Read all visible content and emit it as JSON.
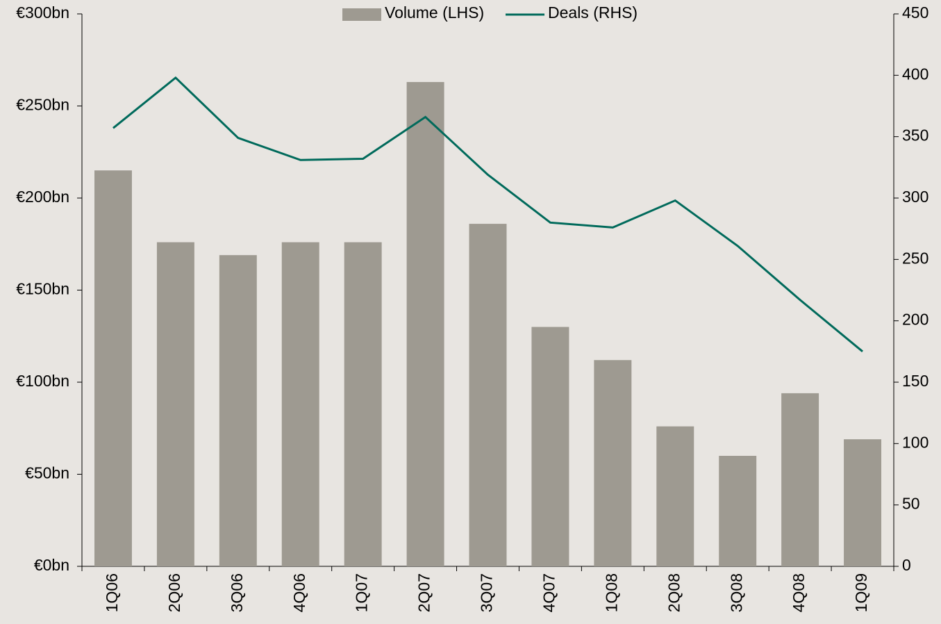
{
  "chart_data": {
    "type": "bar_line",
    "categories": [
      "1Q06",
      "2Q06",
      "3Q06",
      "4Q06",
      "1Q07",
      "2Q07",
      "3Q07",
      "4Q07",
      "1Q08",
      "2Q08",
      "3Q08",
      "4Q08",
      "1Q09"
    ],
    "series": [
      {
        "name": "Volume (LHS)",
        "type": "bar",
        "axis": "y",
        "color": "#9e9a91",
        "values": [
          215,
          176,
          169,
          176,
          176,
          263,
          186,
          130,
          112,
          76,
          60,
          94,
          69
        ]
      },
      {
        "name": "Deals (RHS)",
        "type": "line",
        "axis": "y2",
        "color": "#006a5b",
        "values": [
          357,
          398,
          349,
          331,
          332,
          366,
          319,
          280,
          276,
          298,
          261,
          217,
          175
        ]
      }
    ],
    "ylim": [
      0,
      300
    ],
    "yticks": [
      {
        "value": 0,
        "label": "€0bn"
      },
      {
        "value": 50,
        "label": "€50bn"
      },
      {
        "value": 100,
        "label": "€100bn"
      },
      {
        "value": 150,
        "label": "€150bn"
      },
      {
        "value": 200,
        "label": "€200bn"
      },
      {
        "value": 250,
        "label": "€250bn"
      },
      {
        "value": 300,
        "label": "€300bn"
      }
    ],
    "y2lim": [
      0,
      450
    ],
    "y2ticks": [
      0,
      50,
      100,
      150,
      200,
      250,
      300,
      350,
      400,
      450
    ],
    "grid": false,
    "legend": "top"
  }
}
